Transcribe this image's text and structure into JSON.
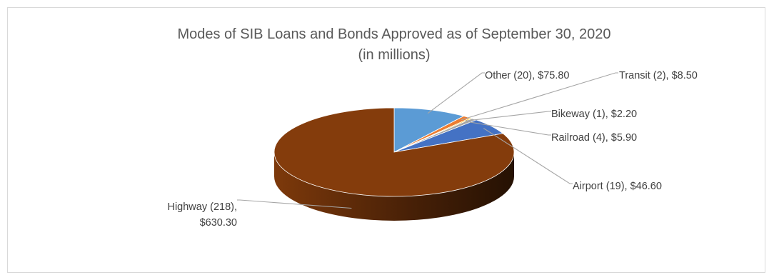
{
  "chart_data": {
    "type": "pie",
    "title_lines": [
      "Modes of SIB Loans and Bonds Approved as of September 30, 2020",
      "(in millions)"
    ],
    "categories": [
      "Other",
      "Transit",
      "Bikeway",
      "Railroad",
      "Airport",
      "Highway"
    ],
    "counts": [
      20,
      2,
      1,
      4,
      19,
      218
    ],
    "values": [
      75.8,
      8.5,
      2.2,
      5.9,
      46.6,
      630.3
    ],
    "labels": [
      [
        "Other (20), $75.80"
      ],
      [
        "Transit (2), $8.50"
      ],
      [
        "Bikeway (1), $2.20"
      ],
      [
        "Railroad (4), $5.90"
      ],
      [
        "Airport (19), $46.60"
      ],
      [
        "Highway (218),",
        "$630.30"
      ]
    ],
    "colors": [
      "#5B9BD5",
      "#ED7D31",
      "#FFC000",
      "#A5A5A5",
      "#4472C4",
      "#843C0C"
    ],
    "legend": "none",
    "style": "3d-pie"
  }
}
